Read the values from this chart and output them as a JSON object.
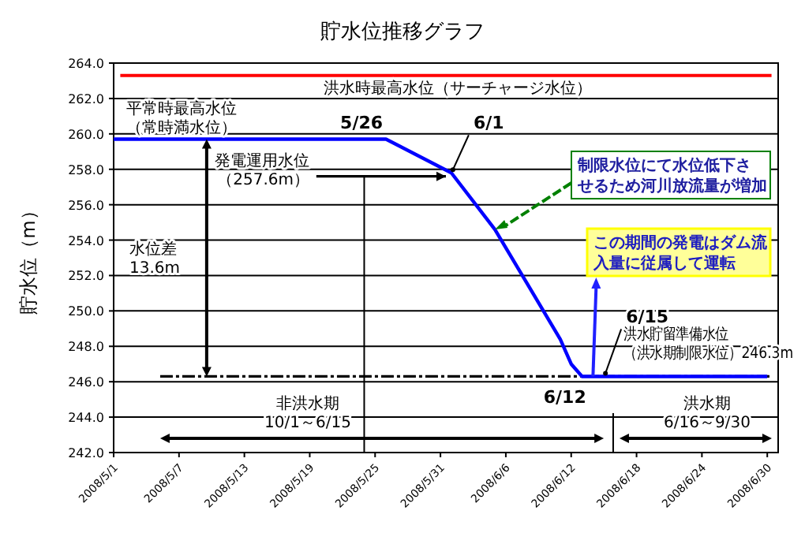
{
  "chart_data": {
    "type": "line",
    "title": "貯水位推移グラフ",
    "ylabel": "貯水位（m）",
    "x": [
      "2008-05-01",
      "2008-05-26",
      "2008-06-01",
      "2008-06-05",
      "2008-06-08",
      "2008-06-11",
      "2008-06-12",
      "2008-06-13",
      "2008-06-30"
    ],
    "series": [
      {
        "color": "#0000ff",
        "values": [
          259.7,
          259.7,
          257.8,
          254.6,
          251.5,
          248.4,
          247.0,
          246.3,
          246.3
        ]
      }
    ],
    "xlim": [
      "2008-05-01",
      "2008-07-01"
    ],
    "xticks": [
      {
        "value": "2008-05-01",
        "label": "2008/5/1"
      },
      {
        "value": "2008-05-07",
        "label": "2008/5/7"
      },
      {
        "value": "2008-05-13",
        "label": "2008/5/13"
      },
      {
        "value": "2008-05-19",
        "label": "2008/5/19"
      },
      {
        "value": "2008-05-25",
        "label": "2008/5/25"
      },
      {
        "value": "2008-05-31",
        "label": "2008/5/31"
      },
      {
        "value": "2008-06-06",
        "label": "2008/6/6"
      },
      {
        "value": "2008-06-12",
        "label": "2008/6/12"
      },
      {
        "value": "2008-06-18",
        "label": "2008/6/18"
      },
      {
        "value": "2008-06-24",
        "label": "2008/6/24"
      },
      {
        "value": "2008-06-30",
        "label": "2008/6/30"
      }
    ],
    "ylim": [
      242,
      264
    ],
    "yticks": [
      {
        "value": 242,
        "label": "242.0"
      },
      {
        "value": 244,
        "label": "244.0"
      },
      {
        "value": 246,
        "label": "246.0"
      },
      {
        "value": 248,
        "label": "248.0"
      },
      {
        "value": 250,
        "label": "250.0"
      },
      {
        "value": 252,
        "label": "252.0"
      },
      {
        "value": 254,
        "label": "254.0"
      },
      {
        "value": 256,
        "label": "256.0"
      },
      {
        "value": 258,
        "label": "258.0"
      },
      {
        "value": 260,
        "label": "260.0"
      },
      {
        "value": 262,
        "label": "262.0"
      },
      {
        "value": 264,
        "label": "264.0"
      }
    ],
    "grid": "y",
    "ref_lines": [
      {
        "axis": "y",
        "value": 263.3,
        "color": "#ff0000",
        "label": "洪水時最高水位（サーチャージ水位）"
      },
      {
        "axis": "y",
        "value": 257.6,
        "color": "#000000",
        "label": "発電運用水位（257.6m）"
      },
      {
        "axis": "y",
        "value": 246.3,
        "color": "#000000",
        "line_style": "dashed",
        "label": "洪水貯留準備水位（洪水期制限水位）246.3m"
      },
      {
        "axis": "x",
        "value": "2008-05-24",
        "color": "#000000"
      }
    ],
    "annotations": [
      "平常時最高水位（常時満水位）",
      {
        "text": "5/26",
        "x": "2008-05-26",
        "y": 259.7
      },
      {
        "text": "6/1",
        "x": "2008-06-01",
        "y": 257.8
      },
      "水位差\n13.6m",
      {
        "text": "制限水位にて水位低下させるため河川放流量が増加",
        "x": "2008-06-05",
        "y": 254.6
      },
      {
        "text": "この期間の発電はダム流入量に従属して運転",
        "x": "2008-06-14",
        "y": 246.3
      },
      "非洪水期\n10/1～6/15",
      "洪水期\n6/16～9/30",
      {
        "text": "6/12",
        "x": "2008-06-12",
        "y": 246.3
      },
      {
        "text": "6/15",
        "x": "2008-06-15",
        "y": 246.3
      }
    ]
  }
}
